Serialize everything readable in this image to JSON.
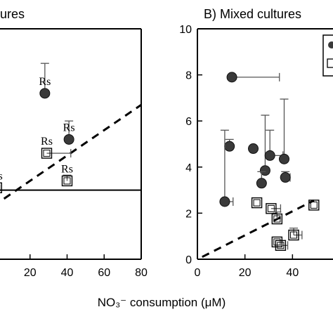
{
  "chart_data": [
    {
      "panel": "A",
      "type": "scatter",
      "title": "ures",
      "x_ticks": [
        "20",
        "40",
        "60",
        "80"
      ],
      "xlim": [
        0,
        80
      ],
      "ylim": [
        0,
        10
      ],
      "series": [
        {
          "marker": "filled-circle",
          "color": "#3a3a3a",
          "points": [
            {
              "x": 28,
              "y": 7.2,
              "yerr_hi": 8.5,
              "label": "Rs"
            },
            {
              "x": 41,
              "y": 5.2,
              "yerr_hi": 6.0,
              "label": "Rs"
            }
          ]
        },
        {
          "marker": "open-square",
          "color": "#000000",
          "points": [
            {
              "x": 29,
              "y": 4.6,
              "xerr_hi": 42,
              "label": "Rs"
            },
            {
              "x": 2,
              "y": 3.1,
              "label": "Rs"
            },
            {
              "x": 40,
              "y": 3.4,
              "yerr_hi": 3.65,
              "label": "Rs"
            }
          ]
        }
      ],
      "reference_line": {
        "style": "dashed",
        "from": [
          0,
          2.3
        ],
        "to": [
          80,
          6.7
        ]
      },
      "horizontal_line": {
        "y": 3.0
      }
    },
    {
      "panel": "B",
      "type": "scatter",
      "title": "B) Mixed cultures",
      "xlabel": "NO₃⁻ consumption (μM)",
      "x_ticks": [
        "0",
        "20",
        "40"
      ],
      "y_ticks": [
        "0",
        "2",
        "4",
        "6",
        "8",
        "10"
      ],
      "xlim": [
        0,
        60
      ],
      "ylim": [
        0,
        10
      ],
      "series": [
        {
          "marker": "filled-circle",
          "color": "#3a3a3a",
          "points": [
            {
              "x": 14.5,
              "y": 7.9,
              "xerr_hi": 34.5
            },
            {
              "x": 13.5,
              "y": 4.9,
              "yerr_hi": 5.2
            },
            {
              "x": 11.5,
              "y": 2.5,
              "yerr_hi": 5.6,
              "xerr_hi": 15
            },
            {
              "x": 23.5,
              "y": 4.8
            },
            {
              "x": 28.5,
              "y": 3.85,
              "yerr_hi": 6.25
            },
            {
              "x": 27,
              "y": 3.3,
              "yerr_hi": 3.8
            },
            {
              "x": 30.5,
              "y": 4.5,
              "yerr_hi": 5.6,
              "xerr_hi": 36
            },
            {
              "x": 36.5,
              "y": 4.35,
              "yerr_hi": 6.95
            },
            {
              "x": 37,
              "y": 3.55,
              "yerr_hi": 3.8,
              "xerr_hi": 39
            }
          ]
        },
        {
          "marker": "open-square",
          "color": "#000000",
          "points": [
            {
              "x": 25,
              "y": 2.45
            },
            {
              "x": 31,
              "y": 2.2,
              "xerr_hi": 35
            },
            {
              "x": 33.5,
              "y": 1.75,
              "yerr_hi": 2.05
            },
            {
              "x": 33.5,
              "y": 0.75
            },
            {
              "x": 35,
              "y": 0.6,
              "xerr_hi": 38
            },
            {
              "x": 40.5,
              "y": 1.05,
              "yerr_hi": 1.35,
              "xerr_hi": 44
            },
            {
              "x": 49,
              "y": 2.35
            }
          ]
        }
      ],
      "reference_line": {
        "style": "dashed",
        "from": [
          2,
          0.1
        ],
        "to": [
          49,
          2.55
        ]
      }
    }
  ]
}
